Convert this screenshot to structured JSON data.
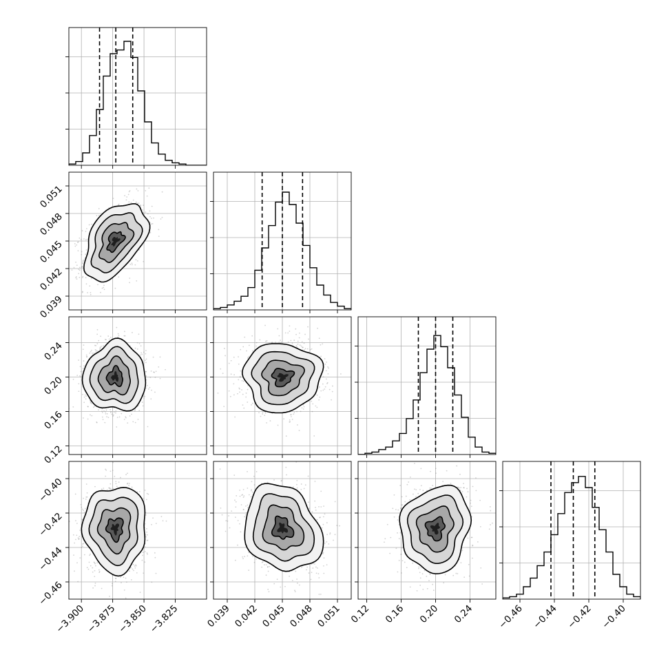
{
  "chart_data": {
    "type": "corner",
    "parameters": [
      {
        "label": "",
        "range": [
          -3.91,
          -3.8
        ],
        "ticks": [
          -3.9,
          -3.875,
          -3.85,
          -3.825
        ],
        "tick_labels": [
          "−3.900",
          "−3.875",
          "−3.850",
          "−3.825"
        ],
        "mean": -3.873,
        "sigma": 0.0125,
        "quantiles": [
          -3.8855,
          -3.8725,
          -3.859
        ]
      },
      {
        "label": "",
        "range": [
          0.0375,
          0.0525
        ],
        "ticks": [
          0.039,
          0.042,
          0.045,
          0.048,
          0.051
        ],
        "tick_labels": [
          "0.039",
          "0.042",
          "0.045",
          "0.048",
          "0.051"
        ],
        "mean": 0.045,
        "sigma": 0.0021,
        "quantiles": [
          0.0428,
          0.045,
          0.0472
        ]
      },
      {
        "label": "",
        "range": [
          0.11,
          0.27
        ],
        "ticks": [
          0.12,
          0.16,
          0.2,
          0.24
        ],
        "tick_labels": [
          "0.12",
          "0.16",
          "0.20",
          "0.24"
        ],
        "mean": 0.2,
        "sigma": 0.02,
        "quantiles": [
          0.18,
          0.2,
          0.22
        ]
      },
      {
        "label": "",
        "range": [
          -0.47,
          -0.39
        ],
        "ticks": [
          -0.46,
          -0.44,
          -0.42,
          -0.4
        ],
        "tick_labels": [
          "−0.46",
          "−0.44",
          "−0.42",
          "−0.40"
        ],
        "mean": -0.429,
        "sigma": 0.0125,
        "quantiles": [
          -0.442,
          -0.429,
          -0.4165
        ]
      }
    ],
    "histograms": [
      [
        0.01,
        0.03,
        0.1,
        0.24,
        0.45,
        0.72,
        0.9,
        0.93,
        1.0,
        0.87,
        0.6,
        0.35,
        0.18,
        0.09,
        0.04,
        0.02,
        0.01,
        0.0,
        0.0,
        0.0
      ],
      [
        0.01,
        0.02,
        0.04,
        0.07,
        0.11,
        0.18,
        0.32,
        0.5,
        0.68,
        0.87,
        0.95,
        0.85,
        0.7,
        0.52,
        0.34,
        0.2,
        0.12,
        0.06,
        0.03,
        0.01
      ],
      [
        0.0,
        0.01,
        0.02,
        0.04,
        0.06,
        0.11,
        0.17,
        0.29,
        0.44,
        0.66,
        0.85,
        0.96,
        0.87,
        0.7,
        0.48,
        0.3,
        0.14,
        0.06,
        0.02,
        0.01
      ],
      [
        0.01,
        0.02,
        0.04,
        0.1,
        0.17,
        0.27,
        0.38,
        0.52,
        0.69,
        0.86,
        0.94,
        0.99,
        0.9,
        0.74,
        0.56,
        0.38,
        0.2,
        0.1,
        0.04,
        0.02
      ]
    ],
    "correlations": {
      "1,0": 0.45,
      "2,0": 0.0,
      "2,1": 0.0,
      "3,0": 0.0,
      "3,1": -0.2,
      "3,2": 0.1
    },
    "grid": true
  }
}
